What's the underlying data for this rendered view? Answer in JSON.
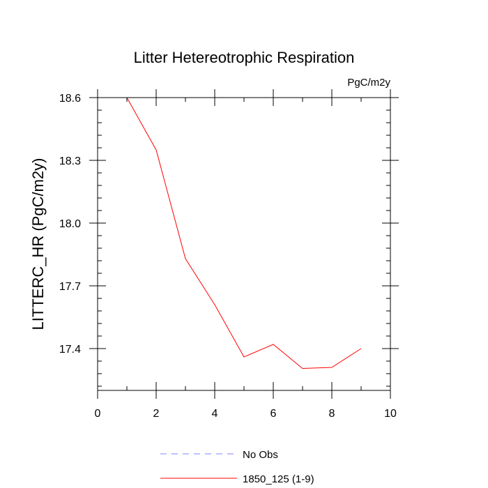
{
  "chart_data": {
    "type": "line",
    "title": "Litter Hetereotrophic Respiration",
    "units_label": "PgC/m2y",
    "xlabel": "",
    "ylabel": "LITTERC_HR  (PgC/m2y)",
    "xlim": [
      0,
      10
    ],
    "ylim": [
      17.2,
      18.6
    ],
    "x_ticks": [
      0,
      2,
      4,
      6,
      8,
      10
    ],
    "x_tick_labels": [
      "0",
      "2",
      "4",
      "6",
      "8",
      "10"
    ],
    "x_minor_step": 1,
    "y_ticks": [
      17.4,
      17.7,
      18.0,
      18.3,
      18.6
    ],
    "y_tick_labels": [
      "17.4",
      "17.7",
      "18.0",
      "18.3",
      "18.6"
    ],
    "y_minor_step": 0.06,
    "grid": false,
    "legend_position": "bottom",
    "series": [
      {
        "name": "No Obs",
        "color": "#8080ff",
        "dashed": true,
        "x": [],
        "y": []
      },
      {
        "name": "1850_125 (1-9)",
        "color": "#ff0000",
        "dashed": false,
        "x": [
          1,
          2,
          3,
          4,
          5,
          6,
          7,
          8,
          9
        ],
        "y": [
          18.6,
          18.35,
          17.83,
          17.61,
          17.36,
          17.42,
          17.305,
          17.31,
          17.4
        ]
      }
    ]
  }
}
